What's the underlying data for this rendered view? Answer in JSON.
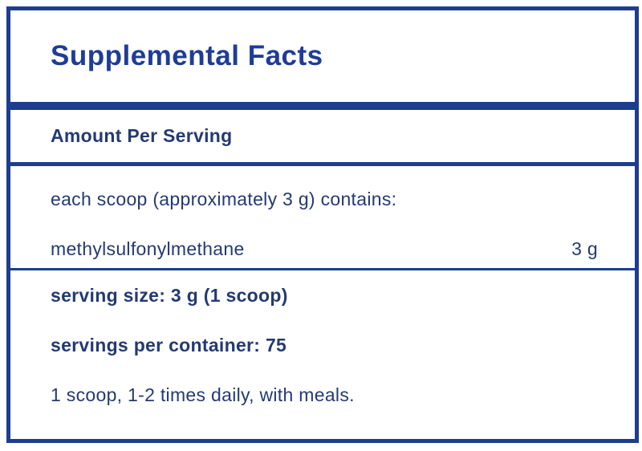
{
  "panel": {
    "title": "Supplemental Facts",
    "amount_header": "Amount Per Serving",
    "contains_line": "each scoop (approximately 3 g) contains:",
    "ingredients": [
      {
        "name": "methylsulfonylmethane",
        "amount": "3 g"
      }
    ],
    "serving_size": "serving size: 3 g (1 scoop)",
    "servings_per_container": "servings per container: 75",
    "directions": "1 scoop, 1-2 times daily, with meals.",
    "colors": {
      "border": "#1d3e8e",
      "title_text": "#1e3d96",
      "body_text": "#233a72",
      "background": "#ffffff"
    }
  }
}
